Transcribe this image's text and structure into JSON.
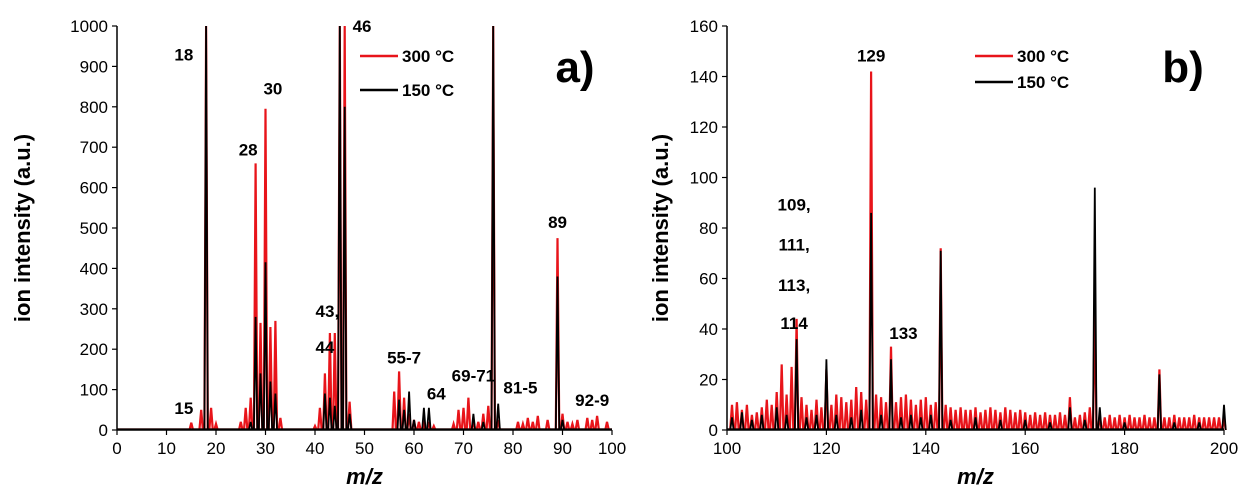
{
  "colors": {
    "s300": "#e8141a",
    "s150": "#000000"
  },
  "chart_data": [
    {
      "type": "line",
      "panel_label": "a)",
      "xlabel": "m/z",
      "ylabel": "ion intensity (a.u.)",
      "xlim": [
        0,
        100
      ],
      "ylim": [
        0,
        1000
      ],
      "xticks": [
        0,
        10,
        20,
        30,
        40,
        50,
        60,
        70,
        80,
        90,
        100
      ],
      "yticks": [
        0,
        100,
        200,
        300,
        400,
        500,
        600,
        700,
        800,
        900,
        1000
      ],
      "legend": [
        "300 °C",
        "150 °C"
      ],
      "annotations": [
        {
          "text": "18",
          "x": 13.5,
          "y": 915
        },
        {
          "text": "15",
          "x": 13.5,
          "y": 40
        },
        {
          "text": "28",
          "x": 26.5,
          "y": 680
        },
        {
          "text": "30",
          "x": 31.5,
          "y": 830
        },
        {
          "text": "43,",
          "x": 42.5,
          "y": 280
        },
        {
          "text": "44",
          "x": 42,
          "y": 190
        },
        {
          "text": "46",
          "x": 49.5,
          "y": 985
        },
        {
          "text": "55-7",
          "x": 58,
          "y": 165
        },
        {
          "text": "64",
          "x": 64.5,
          "y": 75
        },
        {
          "text": "69-71",
          "x": 72,
          "y": 120
        },
        {
          "text": "81-5",
          "x": 81.5,
          "y": 90
        },
        {
          "text": "89",
          "x": 89,
          "y": 500
        },
        {
          "text": "92-9",
          "x": 96,
          "y": 60
        }
      ],
      "series": [
        {
          "name": "300 °C",
          "peaks": [
            [
              15,
              18
            ],
            [
              17,
              50
            ],
            [
              18,
              1000
            ],
            [
              19,
              55
            ],
            [
              20,
              15
            ],
            [
              25,
              20
            ],
            [
              26,
              55
            ],
            [
              27,
              80
            ],
            [
              28,
              660
            ],
            [
              29,
              265
            ],
            [
              30,
              795
            ],
            [
              31,
              255
            ],
            [
              32,
              270
            ],
            [
              33,
              30
            ],
            [
              40,
              10
            ],
            [
              41,
              55
            ],
            [
              42,
              140
            ],
            [
              43,
              240
            ],
            [
              44,
              240
            ],
            [
              45,
              1000
            ],
            [
              46,
              1000
            ],
            [
              47,
              70
            ],
            [
              56,
              95
            ],
            [
              57,
              145
            ],
            [
              58,
              80
            ],
            [
              59,
              40
            ],
            [
              60,
              25
            ],
            [
              61,
              20
            ],
            [
              62,
              15
            ],
            [
              63,
              20
            ],
            [
              64,
              10
            ],
            [
              68,
              15
            ],
            [
              69,
              50
            ],
            [
              70,
              55
            ],
            [
              71,
              80
            ],
            [
              72,
              25
            ],
            [
              73,
              20
            ],
            [
              74,
              40
            ],
            [
              75,
              60
            ],
            [
              76,
              1000
            ],
            [
              77,
              25
            ],
            [
              81,
              20
            ],
            [
              82,
              15
            ],
            [
              83,
              30
            ],
            [
              84,
              20
            ],
            [
              85,
              35
            ],
            [
              87,
              25
            ],
            [
              89,
              475
            ],
            [
              90,
              40
            ],
            [
              91,
              20
            ],
            [
              92,
              15
            ],
            [
              93,
              25
            ],
            [
              95,
              30
            ],
            [
              96,
              25
            ],
            [
              97,
              35
            ],
            [
              99,
              20
            ]
          ]
        },
        {
          "name": "150 °C",
          "peaks": [
            [
              18,
              1000
            ],
            [
              27,
              20
            ],
            [
              28,
              280
            ],
            [
              29,
              140
            ],
            [
              30,
              415
            ],
            [
              31,
              120
            ],
            [
              32,
              90
            ],
            [
              42,
              90
            ],
            [
              43,
              80
            ],
            [
              44,
              60
            ],
            [
              45,
              1000
            ],
            [
              46,
              800
            ],
            [
              47,
              40
            ],
            [
              57,
              75
            ],
            [
              58,
              50
            ],
            [
              59,
              95
            ],
            [
              60,
              25
            ],
            [
              62,
              55
            ],
            [
              63,
              55
            ],
            [
              72,
              40
            ],
            [
              74,
              20
            ],
            [
              76,
              1000
            ],
            [
              77,
              65
            ],
            [
              89,
              380
            ],
            [
              90,
              25
            ]
          ]
        }
      ]
    },
    {
      "type": "line",
      "panel_label": "b)",
      "xlabel": "m/z",
      "ylabel": "ion intensity (a.u.)",
      "xlim": [
        100,
        200
      ],
      "ylim": [
        0,
        160
      ],
      "xticks": [
        100,
        120,
        140,
        160,
        180,
        200
      ],
      "yticks": [
        0,
        20,
        40,
        60,
        80,
        100,
        120,
        140,
        160
      ],
      "legend": [
        "300 °C",
        "150 °C"
      ],
      "annotations": [
        {
          "text": "109,",
          "x": 113.5,
          "y": 87
        },
        {
          "text": "111,",
          "x": 113.5,
          "y": 71
        },
        {
          "text": "113,",
          "x": 113.5,
          "y": 55
        },
        {
          "text": "114",
          "x": 113.5,
          "y": 40
        },
        {
          "text": "129",
          "x": 129,
          "y": 146
        },
        {
          "text": "133",
          "x": 135.5,
          "y": 36
        }
      ],
      "series": [
        {
          "name": "300 °C",
          "peaks": [
            [
              101,
              10
            ],
            [
              102,
              11
            ],
            [
              103,
              8
            ],
            [
              104,
              10
            ],
            [
              105,
              6
            ],
            [
              106,
              7
            ],
            [
              107,
              9
            ],
            [
              108,
              12
            ],
            [
              109,
              10
            ],
            [
              110,
              15
            ],
            [
              111,
              26
            ],
            [
              112,
              14
            ],
            [
              113,
              25
            ],
            [
              114,
              44
            ],
            [
              115,
              13
            ],
            [
              116,
              10
            ],
            [
              117,
              8
            ],
            [
              118,
              12
            ],
            [
              119,
              9
            ],
            [
              120,
              24
            ],
            [
              121,
              10
            ],
            [
              122,
              14
            ],
            [
              123,
              13
            ],
            [
              124,
              11
            ],
            [
              125,
              12
            ],
            [
              126,
              17
            ],
            [
              127,
              15
            ],
            [
              128,
              12
            ],
            [
              129,
              142
            ],
            [
              130,
              14
            ],
            [
              131,
              13
            ],
            [
              132,
              11
            ],
            [
              133,
              33
            ],
            [
              134,
              11
            ],
            [
              135,
              13
            ],
            [
              136,
              14
            ],
            [
              137,
              12
            ],
            [
              138,
              10
            ],
            [
              139,
              12
            ],
            [
              140,
              13
            ],
            [
              141,
              10
            ],
            [
              142,
              11
            ],
            [
              143,
              72
            ],
            [
              144,
              10
            ],
            [
              145,
              9
            ],
            [
              146,
              8
            ],
            [
              147,
              9
            ],
            [
              148,
              8
            ],
            [
              149,
              8
            ],
            [
              150,
              9
            ],
            [
              151,
              7
            ],
            [
              152,
              8
            ],
            [
              153,
              9
            ],
            [
              154,
              8
            ],
            [
              155,
              7
            ],
            [
              156,
              9
            ],
            [
              157,
              8
            ],
            [
              158,
              7
            ],
            [
              159,
              8
            ],
            [
              160,
              7
            ],
            [
              161,
              6
            ],
            [
              162,
              7
            ],
            [
              163,
              6
            ],
            [
              164,
              7
            ],
            [
              165,
              6
            ],
            [
              166,
              6
            ],
            [
              167,
              7
            ],
            [
              168,
              6
            ],
            [
              169,
              13
            ],
            [
              170,
              5
            ],
            [
              171,
              6
            ],
            [
              172,
              7
            ],
            [
              173,
              9
            ],
            [
              174,
              50
            ],
            [
              175,
              6
            ],
            [
              176,
              5
            ],
            [
              177,
              6
            ],
            [
              178,
              5
            ],
            [
              179,
              6
            ],
            [
              180,
              5
            ],
            [
              181,
              6
            ],
            [
              182,
              5
            ],
            [
              183,
              5
            ],
            [
              184,
              6
            ],
            [
              185,
              5
            ],
            [
              186,
              5
            ],
            [
              187,
              24
            ],
            [
              188,
              5
            ],
            [
              189,
              5
            ],
            [
              190,
              6
            ],
            [
              191,
              5
            ],
            [
              192,
              5
            ],
            [
              193,
              5
            ],
            [
              194,
              6
            ],
            [
              195,
              5
            ],
            [
              196,
              5
            ],
            [
              197,
              5
            ],
            [
              198,
              5
            ],
            [
              199,
              5
            ],
            [
              200,
              5
            ]
          ]
        },
        {
          "name": "150 °C",
          "peaks": [
            [
              101,
              5
            ],
            [
              103,
              7
            ],
            [
              105,
              4
            ],
            [
              107,
              6
            ],
            [
              110,
              9
            ],
            [
              112,
              6
            ],
            [
              114,
              36
            ],
            [
              116,
              5
            ],
            [
              118,
              6
            ],
            [
              120,
              28
            ],
            [
              122,
              6
            ],
            [
              125,
              5
            ],
            [
              127,
              8
            ],
            [
              129,
              86
            ],
            [
              131,
              6
            ],
            [
              133,
              28
            ],
            [
              135,
              5
            ],
            [
              137,
              6
            ],
            [
              139,
              5
            ],
            [
              141,
              6
            ],
            [
              143,
              71
            ],
            [
              145,
              4
            ],
            [
              150,
              5
            ],
            [
              155,
              4
            ],
            [
              160,
              4
            ],
            [
              165,
              3
            ],
            [
              169,
              9
            ],
            [
              172,
              4
            ],
            [
              174,
              96
            ],
            [
              175,
              9
            ],
            [
              180,
              3
            ],
            [
              187,
              22
            ],
            [
              190,
              3
            ],
            [
              195,
              3
            ],
            [
              200,
              10
            ]
          ]
        }
      ]
    }
  ]
}
